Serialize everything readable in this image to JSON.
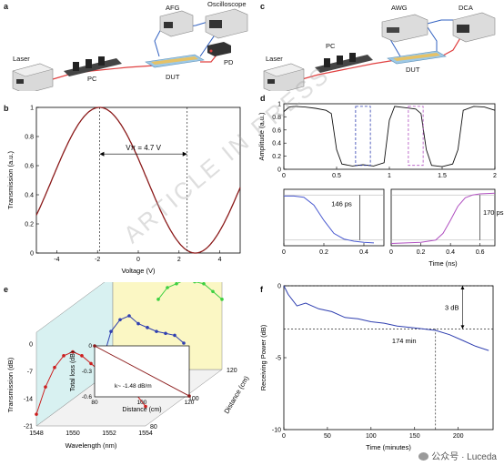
{
  "panels": {
    "a": {
      "letter": "a",
      "labels": {
        "laser": "Laser",
        "pc": "PC",
        "dut": "DUT",
        "afg": "AFG",
        "osc": "Oscilloscope",
        "pd": "PD"
      }
    },
    "c": {
      "letter": "c",
      "labels": {
        "laser": "Laser",
        "pc": "PC",
        "dut": "DUT",
        "awg": "AWG",
        "dca": "DCA"
      }
    },
    "b": {
      "letter": "b",
      "annotation": "Vπ = 4.7 V"
    },
    "d": {
      "letter": "d",
      "ann1": "146 ps",
      "ann2": "170 ps"
    },
    "e": {
      "letter": "e",
      "inset_annotation": "k~ -1.48 dB/m",
      "distance_label": "Distance (cm)"
    },
    "f": {
      "letter": "f",
      "ann_db": "3 dB",
      "ann_min": "174 min"
    }
  },
  "watermark": "ARTICLE IN PRESS",
  "footer": "公众号 · Luceda",
  "colors": {
    "red": "#cc1f1f",
    "blue": "#2f3fb0",
    "green": "#3dd040",
    "purple": "#b050c0",
    "rail": "#e04040",
    "wire": "#3060c0"
  },
  "chart_data": [
    {
      "id": "b",
      "type": "line",
      "xlabel": "Voltage (V)",
      "ylabel": "Transmission (a.u.)",
      "xlim": [
        -5,
        5
      ],
      "ylim": [
        0,
        1
      ],
      "xticks": [
        "-4",
        "-2",
        "0",
        "2",
        "4"
      ],
      "yticks": [
        "0",
        "0.2",
        "0.4",
        "0.6",
        "0.8",
        "1"
      ],
      "series": [
        {
          "model": "cos2",
          "peak_v": -1.9,
          "vpi": 4.7
        }
      ],
      "markers": [
        -1.9,
        2.4
      ]
    },
    {
      "id": "d_top",
      "type": "line",
      "xlabel": "",
      "ylabel": "Amplitude (a.u.)",
      "xlim": [
        0,
        2
      ],
      "ylim": [
        0,
        1
      ],
      "xticks": [
        "0",
        "0.5",
        "1",
        "1.5",
        "2"
      ],
      "yticks": [
        "0",
        "0.2",
        "0.4",
        "0.6",
        "0.8",
        "1"
      ],
      "series": [
        {
          "x": [
            0,
            0.05,
            0.1,
            0.2,
            0.3,
            0.4,
            0.45,
            0.5,
            0.55,
            0.65,
            0.75,
            0.85,
            0.95,
            1.0,
            1.05,
            1.15,
            1.25,
            1.3,
            1.35,
            1.4,
            1.5,
            1.6,
            1.65,
            1.7,
            1.8,
            1.9,
            2.0
          ],
          "y": [
            0.88,
            0.95,
            0.96,
            0.95,
            0.93,
            0.9,
            0.85,
            0.3,
            0.08,
            0.05,
            0.07,
            0.05,
            0.1,
            0.75,
            0.96,
            0.94,
            0.92,
            0.85,
            0.3,
            0.06,
            0.04,
            0.08,
            0.3,
            0.9,
            0.96,
            0.95,
            0.9
          ]
        }
      ]
    },
    {
      "id": "d_fall",
      "type": "line",
      "xlabel": "",
      "ylabel": "",
      "xlim": [
        0,
        0.5
      ],
      "ylim": [
        0,
        1
      ],
      "xticks": [
        "0",
        "0.2",
        "0.4"
      ],
      "series": [
        {
          "x": [
            0,
            0.05,
            0.1,
            0.15,
            0.2,
            0.25,
            0.3,
            0.35,
            0.4,
            0.45
          ],
          "y": [
            0.88,
            0.88,
            0.86,
            0.72,
            0.45,
            0.22,
            0.12,
            0.08,
            0.06,
            0.05
          ]
        }
      ]
    },
    {
      "id": "d_rise",
      "type": "line",
      "xlabel": "Time (ns)",
      "ylabel": "",
      "xlim": [
        0,
        0.7
      ],
      "ylim": [
        0,
        1
      ],
      "xticks": [
        "0",
        "0.2",
        "0.4",
        "0.6"
      ],
      "series": [
        {
          "x": [
            0,
            0.1,
            0.2,
            0.3,
            0.35,
            0.4,
            0.45,
            0.5,
            0.55,
            0.6,
            0.7
          ],
          "y": [
            0.04,
            0.05,
            0.06,
            0.1,
            0.22,
            0.45,
            0.7,
            0.85,
            0.9,
            0.92,
            0.93
          ]
        }
      ]
    },
    {
      "id": "e",
      "type": "line",
      "xlabel": "Wavelength (nm)",
      "ylabel": "Transmission (dB)",
      "zlabel": "Distance (cm)",
      "xticks": [
        "1548",
        "1550",
        "1552",
        "1554"
      ],
      "yticks": [
        "0",
        "-7",
        "-14",
        "-21"
      ],
      "zticks": [
        "80",
        "100",
        "120"
      ],
      "series": [
        {
          "name": "80",
          "color": "red",
          "x": [
            1548,
            1548.5,
            1549,
            1549.5,
            1550,
            1550.5,
            1551,
            1551.5,
            1552,
            1552.5,
            1553,
            1553.5,
            1554
          ],
          "y": [
            -18,
            -11,
            -6,
            -3,
            -2,
            -3,
            -5,
            -7,
            -8,
            -9,
            -12,
            -13,
            -16
          ]
        },
        {
          "name": "100",
          "color": "blue",
          "x": [
            1549.5,
            1550,
            1550.5,
            1551,
            1551.5,
            1552,
            1552.5,
            1553,
            1553.5,
            1554
          ],
          "y": [
            -12,
            -4,
            -1,
            0,
            -2,
            -3,
            -4,
            -4.5,
            -5,
            -7
          ]
        },
        {
          "name": "120",
          "color": "green",
          "x": [
            1550.5,
            1551,
            1551.5,
            1552,
            1552.5,
            1553,
            1553.5,
            1554
          ],
          "y": [
            -3,
            0,
            1,
            2,
            1.5,
            1,
            -1,
            -3
          ]
        }
      ],
      "inset": {
        "xlabel": "Distance (cm)",
        "ylabel": "Total loss (dB)",
        "xticks": [
          "80",
          "100",
          "120"
        ],
        "yticks": [
          "0",
          "-0.3",
          "-0.6"
        ],
        "x": [
          80,
          120
        ],
        "y": [
          0,
          -0.59
        ]
      }
    },
    {
      "id": "f",
      "type": "line",
      "xlabel": "Time (minutes)",
      "ylabel": "Receiving Power (dB)",
      "xlim": [
        0,
        240
      ],
      "ylim": [
        -10,
        0
      ],
      "xticks": [
        "0",
        "50",
        "100",
        "150",
        "200"
      ],
      "yticks": [
        "0",
        "-5",
        "-10"
      ],
      "series": [
        {
          "x": [
            0,
            5,
            15,
            25,
            40,
            55,
            70,
            85,
            100,
            115,
            130,
            145,
            160,
            174,
            190,
            205,
            220,
            235
          ],
          "y": [
            0,
            -0.6,
            -1.4,
            -1.2,
            -1.6,
            -1.8,
            -2.2,
            -2.3,
            -2.5,
            -2.6,
            -2.8,
            -2.9,
            -3.0,
            -3.1,
            -3.4,
            -3.8,
            -4.2,
            -4.5
          ]
        }
      ],
      "hlines": [
        0,
        -3
      ],
      "vline": 174
    }
  ]
}
